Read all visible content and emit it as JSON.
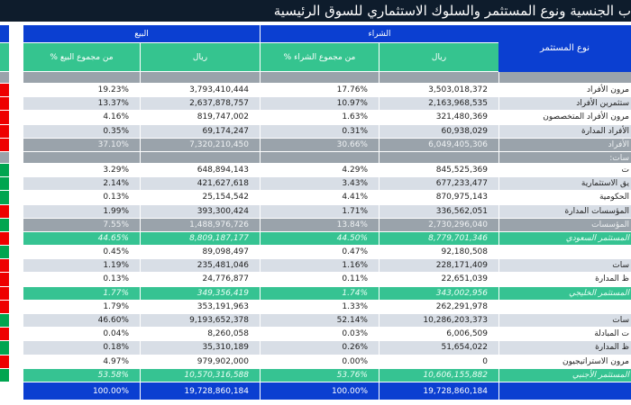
{
  "title": "ب الجنسية ونوع المستثمر والسلوك الاستثماري للسوق الرئيسية",
  "header": {
    "sell": "البيع",
    "buy": "الشراء",
    "investor_type": "نوع المستثمر",
    "sell_pct": "% من مجموع البيع",
    "sell_value": "ريال",
    "buy_pct": "% من مجموع الشراء",
    "buy_value": "ريال"
  },
  "colors": {
    "red": "#ee0000",
    "green": "#00a550",
    "grey": "#9aa3ab",
    "blue": "#0b3fd1",
    "teal": "#35c48f"
  },
  "rows": [
    {
      "kind": "grey",
      "label": "",
      "sell_pct": "",
      "sell_value": "",
      "buy_pct": "",
      "buy_value": "",
      "net": "grey"
    },
    {
      "kind": "white",
      "label": "مرون الأفراد",
      "sell_pct": "19.23%",
      "sell_value": "3,793,410,444",
      "buy_pct": "17.76%",
      "buy_value": "3,503,018,372",
      "net": "red"
    },
    {
      "kind": "light",
      "label": "ستثمرين الأفراد",
      "sell_pct": "13.37%",
      "sell_value": "2,637,878,757",
      "buy_pct": "10.97%",
      "buy_value": "2,163,968,535",
      "net": "red"
    },
    {
      "kind": "white",
      "label": "مرون الأفراد المتخصصون",
      "sell_pct": "4.16%",
      "sell_value": "819,747,002",
      "buy_pct": "1.63%",
      "buy_value": "321,480,369",
      "net": "red"
    },
    {
      "kind": "light",
      "label": "الأفراد المدارة",
      "sell_pct": "0.35%",
      "sell_value": "69,174,247",
      "buy_pct": "0.31%",
      "buy_value": "60,938,029",
      "net": "red"
    },
    {
      "kind": "grey",
      "label": "الأفراد",
      "sell_pct": "37.10%",
      "sell_value": "7,320,210,450",
      "buy_pct": "30.66%",
      "buy_value": "6,049,405,306",
      "net": "red"
    },
    {
      "kind": "grey",
      "label": "سات:",
      "sell_pct": "",
      "sell_value": "",
      "buy_pct": "",
      "buy_value": "",
      "net": "grey"
    },
    {
      "kind": "white",
      "label": "ت",
      "sell_pct": "3.29%",
      "sell_value": "648,894,143",
      "buy_pct": "4.29%",
      "buy_value": "845,525,369",
      "net": "green"
    },
    {
      "kind": "light",
      "label": "يق الاستثمارية",
      "sell_pct": "2.14%",
      "sell_value": "421,627,618",
      "buy_pct": "3.43%",
      "buy_value": "677,233,477",
      "net": "green"
    },
    {
      "kind": "white",
      "label": "الحكومية",
      "sell_pct": "0.13%",
      "sell_value": "25,154,542",
      "buy_pct": "4.41%",
      "buy_value": "870,975,143",
      "net": "green"
    },
    {
      "kind": "light",
      "label": "المؤسسات المدارة",
      "sell_pct": "1.99%",
      "sell_value": "393,300,424",
      "buy_pct": "1.71%",
      "buy_value": "336,562,051",
      "net": "red"
    },
    {
      "kind": "grey",
      "label": "المؤسسات",
      "sell_pct": "7.55%",
      "sell_value": "1,488,976,726",
      "buy_pct": "13.84%",
      "buy_value": "2,730,296,040",
      "net": "green"
    },
    {
      "kind": "green",
      "label": "المستثمر السعودي",
      "sell_pct": "44.65%",
      "sell_value": "8,809,187,177",
      "buy_pct": "44.50%",
      "buy_value": "8,779,701,346",
      "net": "red"
    },
    {
      "kind": "white",
      "label": "",
      "sell_pct": "0.45%",
      "sell_value": "89,098,497",
      "buy_pct": "0.47%",
      "buy_value": "92,180,508",
      "net": "green"
    },
    {
      "kind": "light",
      "label": "سات",
      "sell_pct": "1.19%",
      "sell_value": "235,481,046",
      "buy_pct": "1.16%",
      "buy_value": "228,171,409",
      "net": "red"
    },
    {
      "kind": "white",
      "label": "ظ المدارة",
      "sell_pct": "0.13%",
      "sell_value": "24,776,877",
      "buy_pct": "0.11%",
      "buy_value": "22,651,039",
      "net": "red"
    },
    {
      "kind": "green",
      "label": "المستثمر الخليجي",
      "sell_pct": "1.77%",
      "sell_value": "349,356,419",
      "buy_pct": "1.74%",
      "buy_value": "343,002,956",
      "net": "red"
    },
    {
      "kind": "white",
      "label": "",
      "sell_pct": "1.79%",
      "sell_value": "353,191,963",
      "buy_pct": "1.33%",
      "buy_value": "262,291,978",
      "net": "red"
    },
    {
      "kind": "light",
      "label": "سات",
      "sell_pct": "46.60%",
      "sell_value": "9,193,652,378",
      "buy_pct": "52.14%",
      "buy_value": "10,286,203,373",
      "net": "green"
    },
    {
      "kind": "white",
      "label": "ت المبادلة",
      "sell_pct": "0.04%",
      "sell_value": "8,260,058",
      "buy_pct": "0.03%",
      "buy_value": "6,006,509",
      "net": "red"
    },
    {
      "kind": "light",
      "label": "ظ المدارة",
      "sell_pct": "0.18%",
      "sell_value": "35,310,189",
      "buy_pct": "0.26%",
      "buy_value": "51,654,022",
      "net": "green"
    },
    {
      "kind": "white",
      "label": "مرون الاستراتيجيون",
      "sell_pct": "4.97%",
      "sell_value": "979,902,000",
      "buy_pct": "0.00%",
      "buy_value": "0",
      "net": "red"
    },
    {
      "kind": "green",
      "label": "المستثمر الأجنبي",
      "sell_pct": "53.58%",
      "sell_value": "10,570,316,588",
      "buy_pct": "53.76%",
      "buy_value": "10,606,155,882",
      "net": "green"
    },
    {
      "kind": "blue",
      "label": "",
      "sell_pct": "100.00%",
      "sell_value": "19,728,860,184",
      "buy_pct": "100.00%",
      "buy_value": "19,728,860,184",
      "net": ""
    }
  ]
}
